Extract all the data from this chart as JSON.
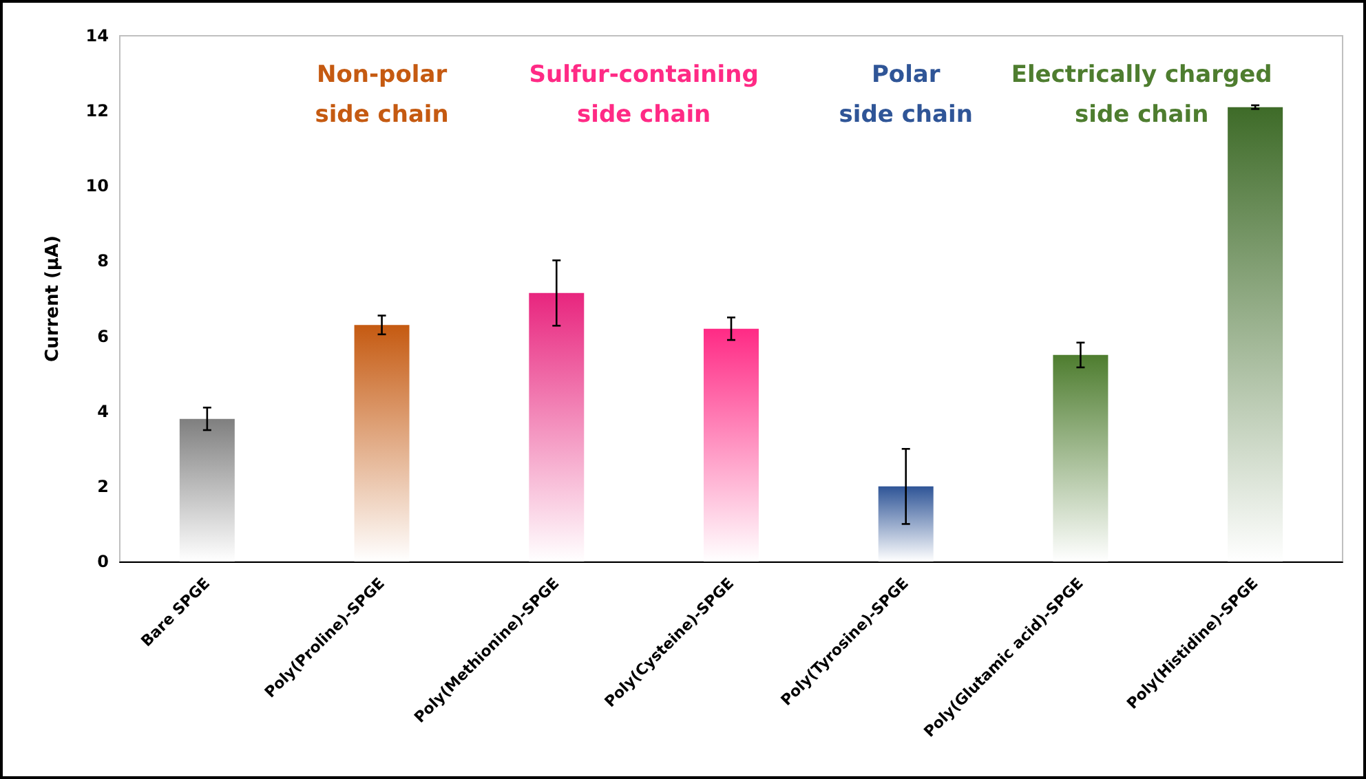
{
  "chart_data": {
    "type": "bar",
    "categories": [
      "Bare SPGE",
      "Poly(Proline)-SPGE",
      "Poly(Methionine)-SPGE",
      "Poly(Cysteine)-SPGE",
      "Poly(Tyrosine)-SPGE",
      "Poly(Glutamic acid)-SPGE",
      "Poly(Histidine)-SPGE"
    ],
    "values": [
      3.8,
      6.3,
      7.15,
      6.2,
      2.0,
      5.5,
      12.1
    ],
    "errors": [
      0.3,
      0.25,
      0.87,
      0.3,
      1.0,
      0.33,
      0.05
    ],
    "colors": [
      "#7f7f7f",
      "#c55a11",
      "#e8257e",
      "#ff2a85",
      "#2f5597",
      "#4e7d2f",
      "#3e6b28"
    ],
    "ylabel": "Current (μA)",
    "ylim": [
      0,
      14
    ],
    "yticks": [
      0,
      2,
      4,
      6,
      8,
      10,
      12,
      14
    ],
    "grid": false,
    "annotations": [
      "Non-polar\nside chain",
      "Sulfur-containing\nside chain",
      "Polar\nside chain",
      "Electrically charged\nside chain"
    ]
  }
}
